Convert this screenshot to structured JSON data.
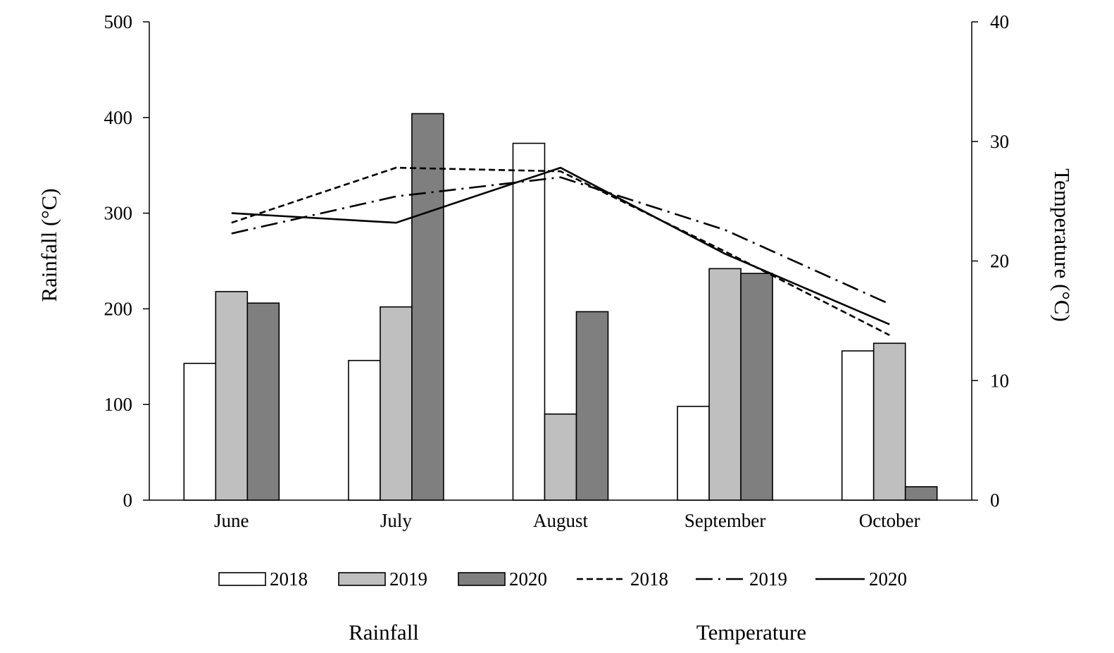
{
  "chart_data": {
    "type": "bar",
    "categories": [
      "June",
      "July",
      "August",
      "September",
      "October"
    ],
    "bar_series": [
      {
        "name": "2018",
        "color": "#ffffff",
        "values": [
          143,
          146,
          373,
          98,
          156
        ]
      },
      {
        "name": "2019",
        "color": "#bfbfbf",
        "values": [
          218,
          202,
          90,
          242,
          164
        ]
      },
      {
        "name": "2020",
        "color": "#7f7f7f",
        "values": [
          206,
          404,
          197,
          237,
          14
        ]
      }
    ],
    "line_series": [
      {
        "name": "2018",
        "style": "dashed",
        "values": [
          23.2,
          27.8,
          27.5,
          20.8,
          13.8
        ]
      },
      {
        "name": "2019",
        "style": "dash-dot",
        "values": [
          22.3,
          25.4,
          27.0,
          22.6,
          16.4
        ]
      },
      {
        "name": "2020",
        "style": "solid",
        "values": [
          24.0,
          23.2,
          27.8,
          20.6,
          14.7
        ]
      }
    ],
    "y_left": {
      "label": "Rainfall (°C)",
      "range": [
        0,
        500
      ],
      "ticks": [
        "0",
        "100",
        "200",
        "300",
        "400",
        "500"
      ]
    },
    "y_right": {
      "label": "Temperature (°C)",
      "range": [
        0,
        40
      ],
      "ticks": [
        "0",
        "10",
        "20",
        "30",
        "40"
      ]
    },
    "legend": {
      "placement": "bottom",
      "groups": [
        "Rainfall",
        "Temperature"
      ]
    },
    "grid": false
  }
}
